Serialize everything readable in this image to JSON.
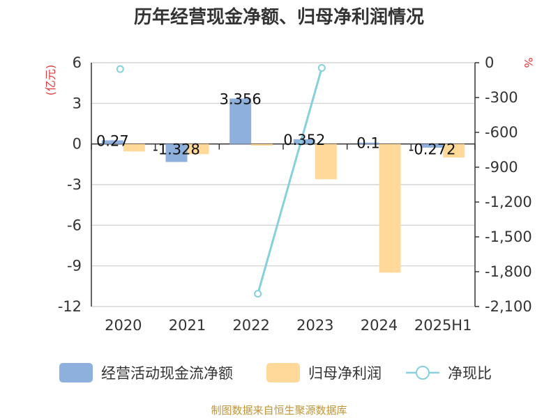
{
  "chart_data": {
    "title": "历年经营现金净额、归母净利润情况",
    "type": "bar+line",
    "categories": [
      "2020",
      "2021",
      "2022",
      "2023",
      "2024",
      "2025H1"
    ],
    "y_left": {
      "unit": "(亿元)",
      "ylim": [
        -12,
        6
      ],
      "ticks": [
        "6",
        "3",
        "0",
        "-3",
        "-6",
        "-9",
        "-12"
      ],
      "tick_values": [
        6,
        3,
        0,
        -3,
        -6,
        -9,
        -12
      ]
    },
    "y_right": {
      "unit": "%",
      "ylim": [
        -2100,
        0
      ],
      "ticks": [
        "0",
        "-300",
        "-600",
        "-900",
        "-1,200",
        "-1,500",
        "-1,800",
        "-2,100"
      ],
      "tick_values": [
        0,
        -300,
        -600,
        -900,
        -1200,
        -1500,
        -1800,
        -2100
      ]
    },
    "series": [
      {
        "name": "经营活动现金流净额",
        "type": "bar",
        "axis": "left",
        "color": "#8eb0dd",
        "values": [
          0.27,
          -1.328,
          3.356,
          0.352,
          0.1,
          -0.272
        ],
        "labels": [
          "0.27",
          "-1.328",
          "3.356",
          "0.352",
          "0.1",
          "-0.272"
        ]
      },
      {
        "name": "归母净利润",
        "type": "bar",
        "axis": "left",
        "color": "#ffd99a",
        "values": [
          -0.55,
          -0.75,
          -0.12,
          -2.6,
          -9.5,
          -1.0
        ]
      },
      {
        "name": "净现比",
        "type": "line",
        "axis": "right",
        "color": "#86d0dc",
        "values": [
          -55,
          null,
          -1990,
          -45,
          null,
          null
        ]
      }
    ],
    "grid": true,
    "legend_position": "bottom"
  },
  "footer": "制图数据来自恒生聚源数据库"
}
